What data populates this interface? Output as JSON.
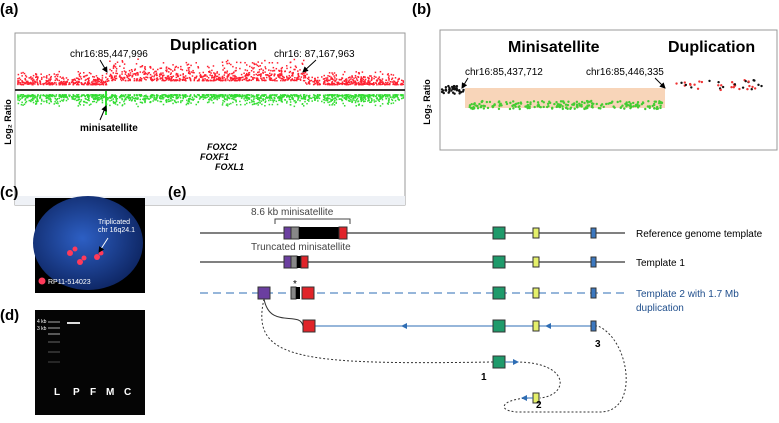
{
  "panel_a": {
    "label": "(a)",
    "title": "Duplication",
    "y_axis_label": "Log₂ Ratio",
    "annotations": [
      "chr16:85,447,996",
      "chr16: 87,167,963",
      "minisatellite"
    ],
    "genes": [
      "FOXC2",
      "FOXF1",
      "FOXL1"
    ]
  },
  "panel_b": {
    "label": "(b)",
    "titles": [
      "Minisatellite",
      "Duplication"
    ],
    "y_axis_label": "Log₂ Ratio",
    "annotations": [
      "chr16:85,437,712",
      "chr16:85,446,335"
    ]
  },
  "panel_c": {
    "label": "(c)",
    "annotation_lines": [
      "Triplicated",
      "chr 16q24.1"
    ],
    "legend": "RP11-514023"
  },
  "panel_d": {
    "label": "(d)",
    "ladder": [
      "4 kb",
      "3 kb"
    ],
    "lanes": [
      "L",
      "P",
      "F",
      "M",
      "C"
    ]
  },
  "panel_e": {
    "label": "(e)",
    "labels": [
      "8.6 kb minisatellite",
      "Truncated minisatellite",
      "*"
    ],
    "templates": [
      "Reference genome template",
      "Template 1",
      "Template 2 with 1.7 Mb",
      "duplication"
    ],
    "numbers": [
      "1",
      "2",
      "3"
    ]
  }
}
